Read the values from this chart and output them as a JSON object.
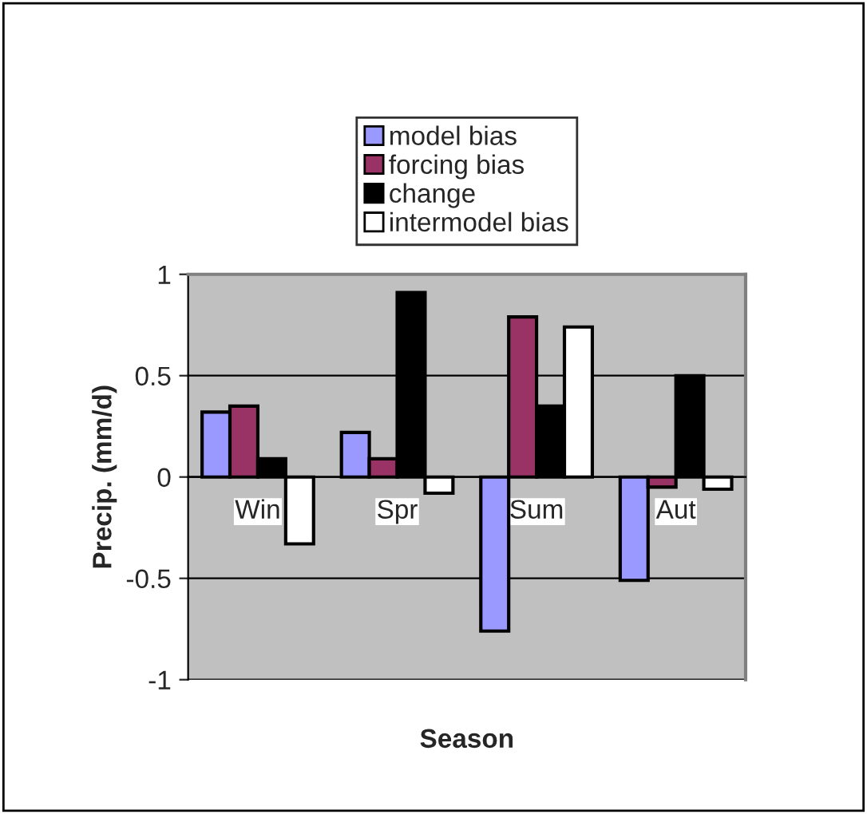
{
  "chart_data": {
    "type": "bar",
    "xlabel": "Season",
    "ylabel": "Precip. (mm/d)",
    "categories": [
      "Win",
      "Spr",
      "Sum",
      "Aut"
    ],
    "series": [
      {
        "name": "model bias",
        "color": "#9999ff",
        "values": [
          0.32,
          0.22,
          -0.76,
          -0.51
        ]
      },
      {
        "name": "forcing bias",
        "color": "#993366",
        "values": [
          0.35,
          0.09,
          0.79,
          -0.05
        ]
      },
      {
        "name": "change",
        "color": "#000000",
        "values": [
          0.09,
          0.91,
          0.35,
          0.5
        ]
      },
      {
        "name": "intermodel bias",
        "color": "#ffffff",
        "values": [
          -0.33,
          -0.08,
          0.74,
          -0.06
        ]
      }
    ],
    "ylim": [
      -1,
      1
    ],
    "yticks": [
      -1,
      -0.5,
      0,
      0.5,
      1
    ],
    "grid": "y",
    "legend": "top"
  }
}
